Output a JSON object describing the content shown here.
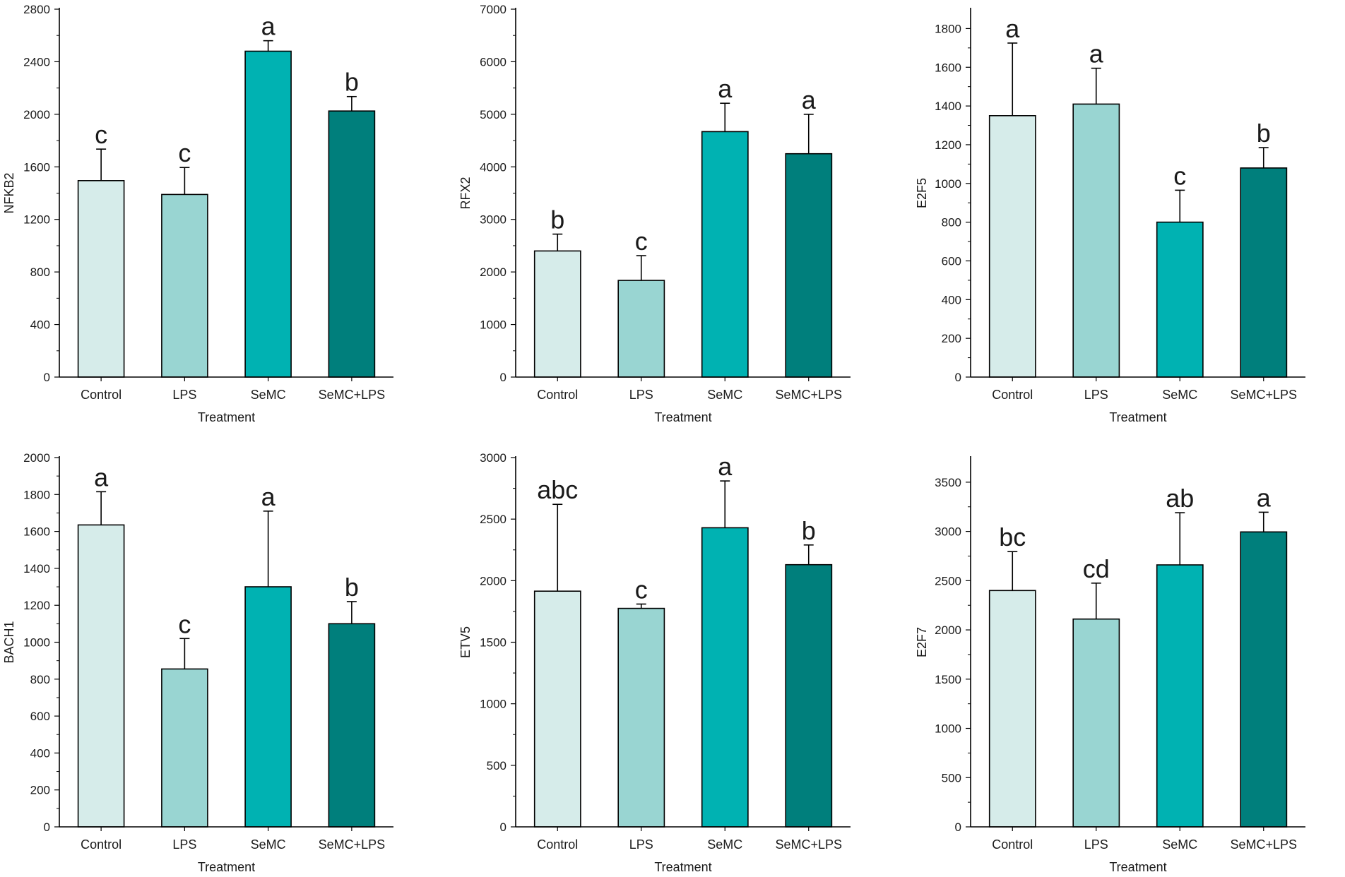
{
  "figure": {
    "colors": {
      "Control": "#d6ecea",
      "LPS": "#99d5d2",
      "SeMC": "#00b2b2",
      "SeMC+LPS": "#007f7c",
      "axis": "#000000"
    }
  },
  "chart_data": [
    {
      "type": "bar",
      "xlabel": "Treatment",
      "ylabel": "NFKB2",
      "categories": [
        "Control",
        "LPS",
        "SeMC",
        "SeMC+LPS"
      ],
      "values": [
        1495,
        1390,
        2480,
        2025
      ],
      "errors": [
        240,
        205,
        80,
        110
      ],
      "letters": [
        "c",
        "c",
        "a",
        "b"
      ],
      "ylim": [
        0,
        2800
      ],
      "yticks": [
        0,
        400,
        800,
        1200,
        1600,
        2000,
        2400,
        2800
      ],
      "ytick_labels": [
        "0",
        "400",
        "800",
        "1200",
        "1600",
        "2000",
        "2400",
        "2800"
      ]
    },
    {
      "type": "bar",
      "xlabel": "Treatment",
      "ylabel": "RFX2",
      "categories": [
        "Control",
        "LPS",
        "SeMC",
        "SeMC+LPS"
      ],
      "values": [
        2400,
        1840,
        4670,
        4250
      ],
      "errors": [
        320,
        470,
        540,
        750
      ],
      "letters": [
        "b",
        "c",
        "a",
        "a"
      ],
      "ylim": [
        0,
        7000
      ],
      "yticks": [
        0,
        1000,
        2000,
        3000,
        4000,
        5000,
        6000,
        7000
      ],
      "ytick_labels": [
        "0",
        "1000",
        "2000",
        "3000",
        "4000",
        "5000",
        "6000",
        "7000"
      ]
    },
    {
      "type": "bar",
      "xlabel": "Treatment",
      "ylabel": "E2F5",
      "categories": [
        "Control",
        "LPS",
        "SeMC",
        "SeMC+LPS"
      ],
      "values": [
        1350,
        1410,
        800,
        1080
      ],
      "errors": [
        375,
        185,
        165,
        105
      ],
      "letters": [
        "a",
        "a",
        "c",
        "b"
      ],
      "ylim": [
        0,
        1900
      ],
      "yticks": [
        0,
        200,
        400,
        600,
        800,
        1000,
        1200,
        1400,
        1600,
        1800
      ],
      "ytick_labels": [
        "0",
        "200",
        "400",
        "600",
        "800",
        "1000",
        "1200",
        "1400",
        "1600",
        "1800"
      ]
    },
    {
      "type": "bar",
      "xlabel": "Treatment",
      "ylabel": "BACH1",
      "categories": [
        "Control",
        "LPS",
        "SeMC",
        "SeMC+LPS"
      ],
      "values": [
        1635,
        855,
        1300,
        1100
      ],
      "errors": [
        180,
        165,
        410,
        120
      ],
      "letters": [
        "a",
        "c",
        "a",
        "b"
      ],
      "ylim": [
        0,
        2000
      ],
      "yticks": [
        0,
        200,
        400,
        600,
        800,
        1000,
        1200,
        1400,
        1600,
        1800,
        2000
      ],
      "ytick_labels": [
        "0",
        "200",
        "400",
        "600",
        "800",
        "1000",
        "1200",
        "1400",
        "1600",
        "1800",
        "2000"
      ]
    },
    {
      "type": "bar",
      "xlabel": "Treatment",
      "ylabel": "ETV5",
      "categories": [
        "Control",
        "LPS",
        "SeMC",
        "SeMC+LPS"
      ],
      "values": [
        1915,
        1775,
        2430,
        2130
      ],
      "errors": [
        705,
        35,
        380,
        160
      ],
      "letters": [
        "abc",
        "c",
        "a",
        "b"
      ],
      "ylim": [
        0,
        3000
      ],
      "yticks": [
        0,
        500,
        1000,
        1500,
        2000,
        2500,
        3000
      ],
      "ytick_labels": [
        "0",
        "500",
        "1000",
        "1500",
        "2000",
        "2500",
        "3000"
      ]
    },
    {
      "type": "bar",
      "xlabel": "Treatment",
      "ylabel": "E2F7",
      "categories": [
        "Control",
        "LPS",
        "SeMC",
        "SeMC+LPS"
      ],
      "values": [
        2400,
        2110,
        2660,
        2995
      ],
      "errors": [
        395,
        365,
        530,
        200
      ],
      "letters": [
        "bc",
        "cd",
        "ab",
        "a"
      ],
      "ylim": [
        0,
        3750
      ],
      "yticks": [
        0,
        500,
        1000,
        1500,
        2000,
        2500,
        3000,
        3500
      ],
      "ytick_labels": [
        "0",
        "500",
        "1000",
        "1500",
        "2000",
        "2500",
        "3000",
        "3500"
      ]
    }
  ]
}
